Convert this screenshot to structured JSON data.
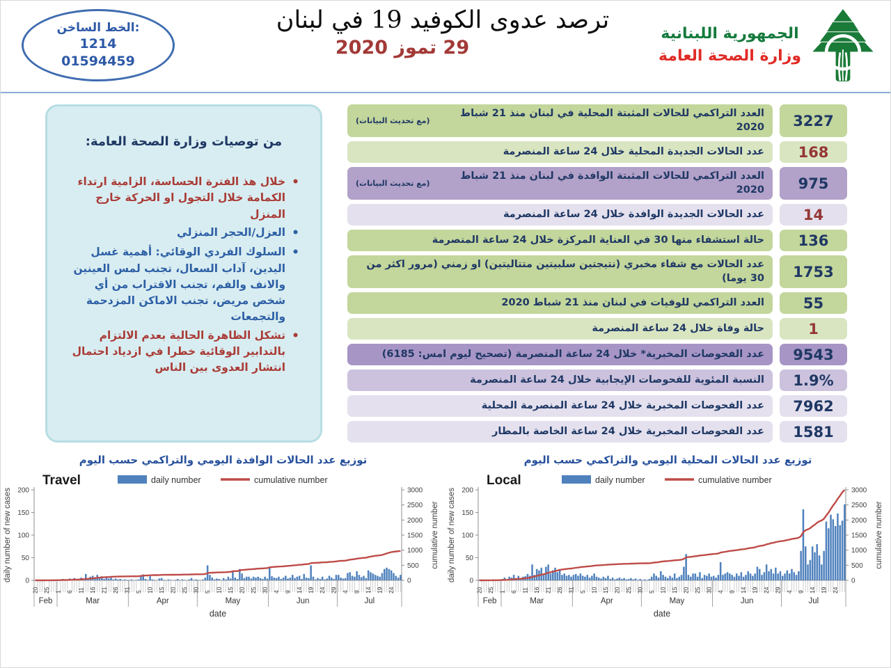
{
  "header": {
    "hotline": {
      "label": "الخط الساخن:",
      "number1": "1214",
      "number2": "01594459"
    },
    "title": "ترصد عدوى الكوفيد 19 في لبنان",
    "date": "29 تموز 2020",
    "ministry": {
      "line1": "الجمهورية اللبنانية",
      "line2": "وزارة الصحة العامة"
    }
  },
  "recommendations": {
    "heading": "من توصيات وزارة الصحة العامة:",
    "items": [
      {
        "text": "خلال هذ الفترة الحساسة، الزامية ارتداء الكمامة خلال التجول او الحركة خارج المنزل",
        "color": "red"
      },
      {
        "text": "العزل/الحجر المنزلي",
        "color": "blue"
      },
      {
        "text": "السلوك الفردي الوقائي: أهمية غسل اليدين، آداب السعال، تجنب لمس العينين والانف والفم، تجنب الاقتراب من أي شخص مريض، تجنب الاماكن المزدحمة والتجمعات",
        "color": "blue"
      },
      {
        "text": "تشكل الظاهرة الحالية بعدم الالتزام بالتدابير الوقائية خطرا في ازدياد احتمال انتشار العدوى بين الناس",
        "color": "red"
      }
    ]
  },
  "stats": {
    "rows": [
      {
        "label": "العدد التراكمي للحالات المثبتة المحلية في لبنان منذ 21 شباط 2020",
        "note": "(مع تحديث البيانات)",
        "value": "3227",
        "bg": "bg-green-med",
        "value_color": "val-navy"
      },
      {
        "label": "عدد الحالات الجديدة المحلية خلال 24 ساعة المنصرمة",
        "note": "",
        "value": "168",
        "bg": "bg-green-light",
        "value_color": "val-red"
      },
      {
        "label": "العدد التراكمي للحالات المثبتة الوافدة في لبنان منذ 21 شباط 2020",
        "note": "(مع تحديث البيانات)",
        "value": "975",
        "bg": "bg-purple-med",
        "value_color": "val-navy"
      },
      {
        "label": "عدد الحالات الجديدة الوافدة خلال 24 ساعة المنصرمة",
        "note": "",
        "value": "14",
        "bg": "bg-purple-pale",
        "value_color": "val-red"
      },
      {
        "label": "حالة استشفاء منها 30 في العناية المركزة خلال 24 ساعة المنصرمة",
        "note": "",
        "value": "136",
        "bg": "bg-green-med",
        "value_color": "val-navy"
      },
      {
        "label": "عدد الحالات مع شفاء مخبري (نتيجتين سلبيتين متتاليتين) او زمني (مرور اكثر من 30 يوما)",
        "note": "",
        "value": "1753",
        "bg": "bg-green-med",
        "value_color": "val-navy"
      },
      {
        "label": "العدد التراكمي للوفيات في لبنان منذ 21 شباط 2020",
        "note": "",
        "value": "55",
        "bg": "bg-green-med",
        "value_color": "val-navy"
      },
      {
        "label": "حالة وفاة خلال 24 ساعة المنصرمة",
        "note": "",
        "value": "1",
        "bg": "bg-green-light",
        "value_color": "val-red"
      },
      {
        "label": "عدد الفحوصات المخبرية* خلال 24 ساعة المنصرمة  (تصحيح ليوم امس: 6185)",
        "note": "",
        "value": "9543",
        "bg": "bg-purple-dark",
        "value_color": "val-navy"
      },
      {
        "label": "النسبة المئوية للفحوصات الإيجابية خلال 24 ساعة المنصرمة",
        "note": "",
        "value": "1.9%",
        "bg": "bg-purple-light",
        "value_color": "val-navy"
      },
      {
        "label": "عدد الفحوصات المخبرية خلال 24 ساعة المنصرمة المحلية",
        "note": "",
        "value": "7962",
        "bg": "bg-purple-pale",
        "value_color": "val-navy"
      },
      {
        "label": "عدد الفحوصات المخبرية خلال 24 ساعة الخاصة بالمطار",
        "note": "",
        "value": "1581",
        "bg": "bg-purple-pale",
        "value_color": "val-navy"
      }
    ]
  },
  "section_titles": {
    "local": "توزيع عدد الحالات المحلية اليومي والتراكمي حسب اليوم",
    "travel": "توزيع عدد الحالات الوافدة اليومي والتراكمي حسب اليوم"
  },
  "chart_common": {
    "xlabel": "date",
    "ylabel_left": "daily number of new cases",
    "ylabel_right": "cumulative number",
    "left_ticks": [
      0,
      50,
      100,
      150,
      200
    ],
    "right_ticks": [
      0,
      500,
      1000,
      1500,
      2000,
      2500,
      3000
    ],
    "ylim_left": [
      0,
      200
    ],
    "ylim_right": [
      0,
      3000
    ],
    "legend_daily": "daily number",
    "legend_cumulative": "cumulative number",
    "bar_color": "#4f81bd",
    "line_color": "#be4b48",
    "day_labels": [
      "20",
      "25",
      "1",
      "6",
      "11",
      "16",
      "21",
      "26",
      "31",
      "5",
      "10",
      "15",
      "20",
      "25",
      "30",
      "5",
      "10",
      "15",
      "20",
      "25",
      "30",
      "4",
      "9",
      "14",
      "19",
      "24",
      "29",
      "4",
      "9",
      "14",
      "19",
      "24"
    ],
    "months": [
      {
        "label": "Feb",
        "days": 10
      },
      {
        "label": "Mar",
        "days": 31
      },
      {
        "label": "Apr",
        "days": 30
      },
      {
        "label": "May",
        "days": 31
      },
      {
        "label": "Jun",
        "days": 30
      },
      {
        "label": "Jul",
        "days": 28
      }
    ]
  },
  "chart_data": [
    {
      "type": "bar",
      "name": "travel",
      "title": "Travel",
      "x_start": "Feb 20",
      "x_end": "Jul 28",
      "cumulative_total": 975,
      "daily": [
        0,
        0,
        1,
        0,
        0,
        1,
        0,
        1,
        0,
        1,
        2,
        1,
        3,
        1,
        2,
        4,
        2,
        5,
        3,
        2,
        6,
        3,
        14,
        4,
        8,
        10,
        7,
        12,
        5,
        9,
        3,
        8,
        4,
        6,
        2,
        4,
        2,
        3,
        1,
        2,
        1,
        1,
        2,
        0,
        1,
        2,
        10,
        13,
        3,
        1,
        9,
        2,
        1,
        0,
        4,
        5,
        1,
        0,
        2,
        1,
        0,
        1,
        3,
        0,
        2,
        1,
        0,
        2,
        5,
        1,
        2,
        1,
        0,
        2,
        6,
        33,
        12,
        6,
        2,
        4,
        3,
        1,
        5,
        2,
        8,
        4,
        20,
        6,
        3,
        25,
        15,
        5,
        8,
        8,
        4,
        8,
        6,
        8,
        5,
        3,
        8,
        4,
        27,
        9,
        6,
        5,
        8,
        3,
        6,
        10,
        4,
        6,
        12,
        5,
        8,
        10,
        3,
        14,
        6,
        5,
        33,
        8,
        2,
        5,
        3,
        8,
        2,
        4,
        10,
        6,
        3,
        12,
        12,
        6,
        4,
        5,
        16,
        18,
        10,
        8,
        20,
        12,
        7,
        10,
        5,
        22,
        18,
        15,
        12,
        10,
        8,
        16,
        25,
        28,
        25,
        22,
        16,
        10,
        6,
        12
      ]
    },
    {
      "type": "bar",
      "name": "local",
      "title": "Local",
      "x_start": "Feb 20",
      "x_end": "Jul 28",
      "cumulative_total": 3059,
      "daily": [
        1,
        0,
        0,
        1,
        0,
        0,
        2,
        1,
        0,
        2,
        3,
        6,
        2,
        8,
        6,
        12,
        5,
        10,
        3,
        8,
        9,
        14,
        10,
        35,
        12,
        25,
        22,
        28,
        14,
        30,
        35,
        15,
        22,
        28,
        18,
        25,
        12,
        15,
        10,
        12,
        8,
        12,
        14,
        10,
        15,
        10,
        8,
        12,
        6,
        10,
        15,
        8,
        6,
        4,
        8,
        5,
        10,
        3,
        6,
        2,
        4,
        6,
        3,
        5,
        2,
        3,
        5,
        2,
        4,
        1,
        3,
        1,
        2,
        1,
        3,
        8,
        15,
        10,
        6,
        20,
        12,
        8,
        5,
        10,
        6,
        15,
        5,
        8,
        12,
        30,
        58,
        12,
        8,
        15,
        15,
        8,
        18,
        5,
        12,
        10,
        15,
        8,
        10,
        6,
        12,
        40,
        12,
        15,
        18,
        15,
        12,
        8,
        15,
        10,
        18,
        8,
        12,
        20,
        15,
        10,
        15,
        30,
        25,
        12,
        18,
        35,
        20,
        25,
        15,
        28,
        15,
        20,
        10,
        15,
        22,
        15,
        25,
        18,
        12,
        20,
        65,
        157,
        75,
        35,
        45,
        75,
        62,
        80,
        55,
        35,
        65,
        130,
        115,
        145,
        135,
        120,
        148,
        122,
        132,
        168
      ]
    }
  ]
}
